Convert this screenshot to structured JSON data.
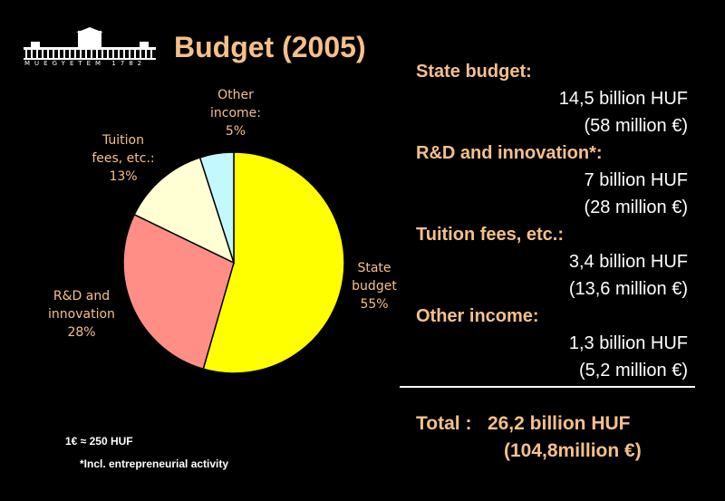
{
  "logo": {
    "text": "MŰEGYETEM 1782"
  },
  "title": "Budget (2005)",
  "chart_data": {
    "type": "pie",
    "categories": [
      "State budget",
      "R&D and innovation",
      "Tuition fees, etc.:",
      "Other income:"
    ],
    "values": [
      55,
      28,
      13,
      5
    ],
    "labels": [
      "State\nbudget\n55%",
      "R&D and\ninnovation\n28%",
      "Tuition\nfees, etc.:\n13%",
      "Other\nincome:\n5%"
    ],
    "colors": [
      "#ffff00",
      "#ff8f86",
      "#ffffd3",
      "#c4f8ff"
    ]
  },
  "notes": {
    "exchange": "1€ ≈ 250 HUF",
    "footnote": "*Incl. entrepreneurial activity"
  },
  "breakdown": [
    {
      "category": "State budget:",
      "huf": "14,5 billion HUF",
      "eur": "(58 million €)"
    },
    {
      "category": "R&D and innovation*:",
      "huf": "7 billion HUF",
      "eur": "(28 million €)"
    },
    {
      "category": "Tuition fees, etc.:",
      "huf": "3,4 billion HUF",
      "eur": "(13,6 million €)"
    },
    {
      "category": "Other income:",
      "huf": "1,3 billion HUF",
      "eur": "(5,2 million €)"
    }
  ],
  "total": {
    "label": "Total :",
    "huf": "26,2 billion HUF",
    "eur": "(104,8million €)"
  }
}
